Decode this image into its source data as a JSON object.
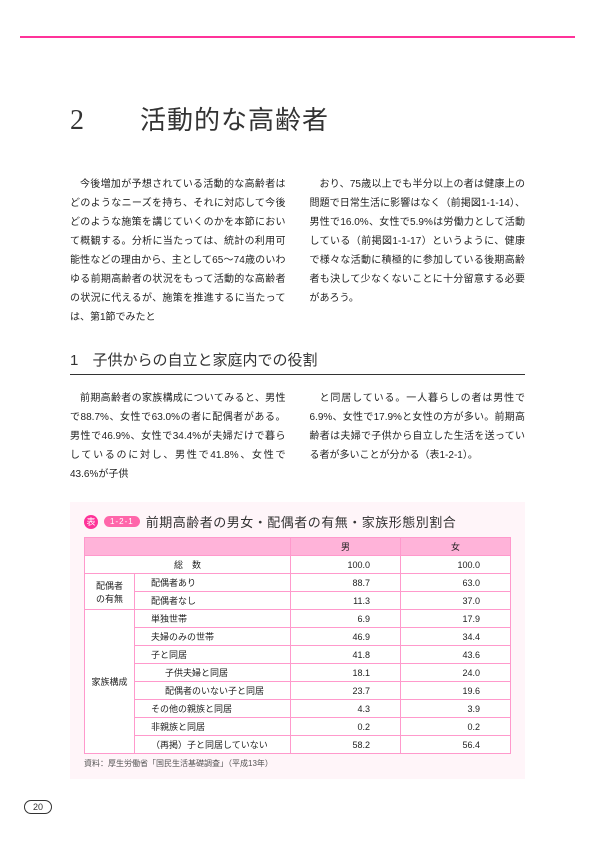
{
  "chapter": {
    "num": "2",
    "title": "活動的な高齢者"
  },
  "intro": {
    "left": "今後増加が予想されている活動的な高齢者はどのようなニーズを持ち、それに対応して今後どのような施策を講じていくのかを本節において概観する。分析に当たっては、統計の利用可能性などの理由から、主として65～74歳のいわゆる前期高齢者の状況をもって活動的な高齢者の状況に代えるが、施策を推進するに当たっては、第1節でみたと",
    "right": "おり、75歳以上でも半分以上の者は健康上の問題で日常生活に影響はなく（前掲図1-1-14）、男性で16.0%、女性で5.9%は労働力として活動している（前掲図1-1-17）というように、健康で様々な活動に積極的に参加している後期高齢者も決して少なくないことに十分留意する必要があろう。"
  },
  "section1": {
    "num": "1",
    "title": "子供からの自立と家庭内での役割",
    "left": "前期高齢者の家族構成についてみると、男性で88.7%、女性で63.0%の者に配偶者がある。男性で46.9%、女性で34.4%が夫婦だけで暮らしているのに対し、男性で41.8%、女性で43.6%が子供",
    "right": "と同居している。一人暮らしの者は男性で6.9%、女性で17.9%と女性の方が多い。前期高齢者は夫婦で子供から自立した生活を送っている者が多いことが分かる（表1-2-1）。"
  },
  "table": {
    "badge": "1-2-1",
    "badgeIcon": "表",
    "caption": "前期高齢者の男女・配偶者の有無・家族形態別割合",
    "headers": {
      "blank": "",
      "total": "総　数",
      "male": "男",
      "female": "女"
    },
    "group1": {
      "head": "配偶者\nの有無",
      "rows": [
        {
          "label": "配偶者あり",
          "m": "88.7",
          "f": "63.0"
        },
        {
          "label": "配偶者なし",
          "m": "11.3",
          "f": "37.0"
        }
      ]
    },
    "group2": {
      "head": "家族構成",
      "rows": [
        {
          "label": "単独世帯",
          "m": "6.9",
          "f": "17.9",
          "indent": 0
        },
        {
          "label": "夫婦のみの世帯",
          "m": "46.9",
          "f": "34.4",
          "indent": 0
        },
        {
          "label": "子と同居",
          "m": "41.8",
          "f": "43.6",
          "indent": 0
        },
        {
          "label": "子供夫婦と同居",
          "m": "18.1",
          "f": "24.0",
          "indent": 1
        },
        {
          "label": "配偶者のいない子と同居",
          "m": "23.7",
          "f": "19.6",
          "indent": 1
        },
        {
          "label": "その他の親族と同居",
          "m": "4.3",
          "f": "3.9",
          "indent": 0
        },
        {
          "label": "非親族と同居",
          "m": "0.2",
          "f": "0.2",
          "indent": 0
        },
        {
          "label": "（再掲）子と同居していない",
          "m": "58.2",
          "f": "56.4",
          "indent": 0
        }
      ]
    },
    "totalRow": {
      "m": "100.0",
      "f": "100.0"
    },
    "source": "資料：厚生労働省「国民生活基礎調査」（平成13年）"
  },
  "pageNum": "20",
  "colors": {
    "accent": "#ff3399",
    "tableHeader": "#ffb3d9",
    "tableBorder": "#ff99cc",
    "tableBg": "#fff5f9"
  }
}
